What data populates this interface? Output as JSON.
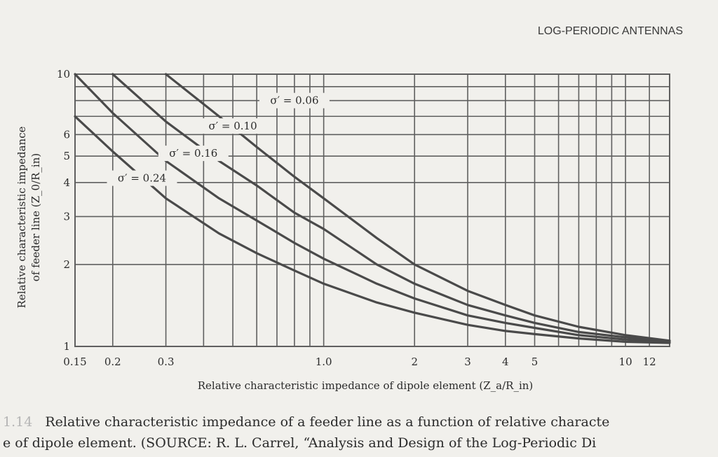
{
  "header": {
    "running_title": "LOG-PERIODIC ANTENNAS"
  },
  "chart_data": {
    "type": "line",
    "title": "",
    "xlabel": "Relative characteristic impedance of dipole element (Z_a/R_in)",
    "ylabel_line1": "Relative characteristic impedance",
    "ylabel_line2": "of feeder line (Z_0/R_in)",
    "xscale": "log",
    "yscale": "log",
    "xlim": [
      0.15,
      14
    ],
    "ylim": [
      1,
      10
    ],
    "grid": true,
    "x_tick_labels": [
      "0.15",
      "0.2",
      "0.3",
      "1.0",
      "2",
      "3",
      "4",
      "5",
      "10",
      "12"
    ],
    "x_ticks": [
      0.15,
      0.2,
      0.3,
      1.0,
      2,
      3,
      4,
      5,
      10,
      12
    ],
    "y_tick_labels": [
      "1",
      "2",
      "3",
      "4",
      "5",
      "6",
      "10"
    ],
    "y_ticks": [
      1,
      2,
      3,
      4,
      5,
      6,
      10
    ],
    "series": [
      {
        "name": "σ′ = 0.06",
        "x": [
          0.3,
          0.45,
          0.6,
          0.8,
          1.0,
          1.5,
          2,
          3,
          4,
          5,
          7,
          10,
          14
        ],
        "y": [
          10,
          7.0,
          5.4,
          4.2,
          3.5,
          2.5,
          2.0,
          1.6,
          1.42,
          1.3,
          1.18,
          1.1,
          1.05
        ]
      },
      {
        "name": "σ′ = 0.10",
        "x": [
          0.2,
          0.3,
          0.45,
          0.6,
          0.8,
          1.0,
          1.5,
          2,
          3,
          4,
          5,
          7,
          10,
          14
        ],
        "y": [
          10,
          6.7,
          4.8,
          3.9,
          3.1,
          2.7,
          2.0,
          1.7,
          1.42,
          1.3,
          1.22,
          1.13,
          1.08,
          1.05
        ]
      },
      {
        "name": "σ′ = 0.16",
        "x": [
          0.15,
          0.2,
          0.3,
          0.45,
          0.6,
          0.8,
          1.0,
          1.5,
          2,
          3,
          4,
          5,
          7,
          10,
          14
        ],
        "y": [
          10,
          7.2,
          4.8,
          3.5,
          2.9,
          2.4,
          2.1,
          1.7,
          1.5,
          1.3,
          1.22,
          1.17,
          1.1,
          1.06,
          1.04
        ]
      },
      {
        "name": "σ′ = 0.24",
        "x": [
          0.15,
          0.2,
          0.3,
          0.45,
          0.6,
          0.8,
          1.0,
          1.5,
          2,
          3,
          4,
          5,
          7,
          10,
          14
        ],
        "y": [
          7.0,
          5.2,
          3.5,
          2.6,
          2.2,
          1.9,
          1.7,
          1.45,
          1.33,
          1.2,
          1.14,
          1.11,
          1.07,
          1.04,
          1.03
        ]
      }
    ]
  },
  "caption": {
    "figure_number": "1.14",
    "line1": "Relative characteristic impedance of a feeder line as a function of relative characte",
    "line2": "e of dipole element. (SOURCE: R. L. Carrel, “Analysis and Design of the Log-Periodic Di"
  },
  "colors": {
    "grid": "#5f5f5f",
    "curve": "#4a4a4a",
    "text": "#2b2b2b"
  }
}
